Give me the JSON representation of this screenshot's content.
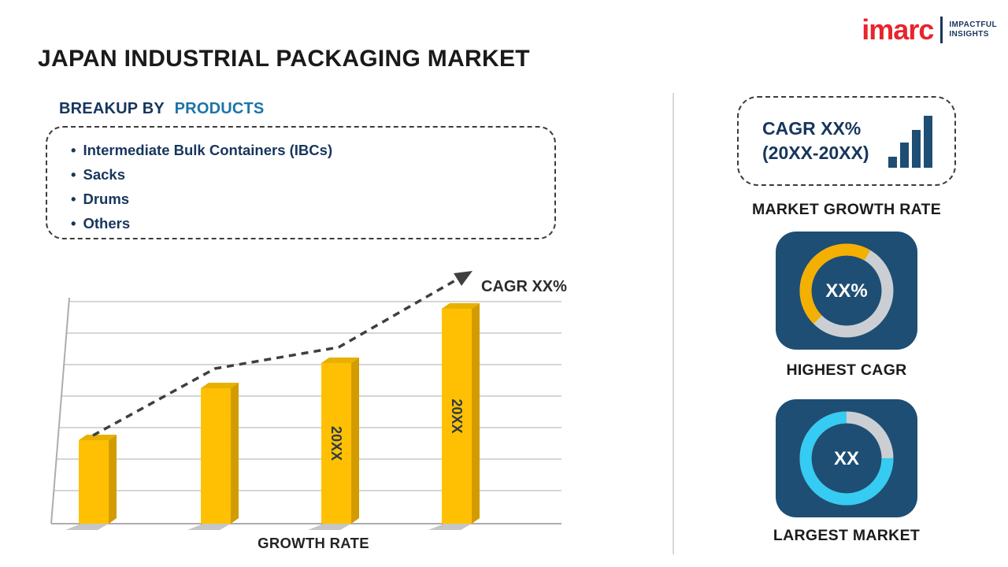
{
  "page": {
    "title": "JAPAN INDUSTRIAL PACKAGING MARKET"
  },
  "logo": {
    "brand": "imarc",
    "tagline_line1": "IMPACTFUL",
    "tagline_line2": "INSIGHTS"
  },
  "breakup": {
    "heading_prefix": "BREAKUP BY",
    "heading_highlight": "PRODUCTS",
    "items": [
      "Intermediate Bulk Containers (IBCs)",
      "Sacks",
      "Drums",
      "Others"
    ]
  },
  "chart_data": {
    "type": "bar",
    "categories": [
      "",
      "",
      "20XX",
      "20XX"
    ],
    "values": [
      37,
      60,
      71,
      95
    ],
    "ylim": [
      0,
      100
    ],
    "grid": true,
    "trend": "dashed-arrow-up",
    "annotation": "CAGR XX%",
    "xlabel": "GROWTH RATE",
    "ylabel": "",
    "title": "",
    "bar_color": "#FFC003",
    "bar_color_side": "#D29C00",
    "bar_color_top": "#E8B000",
    "label_color": "#2E3A48"
  },
  "right_panel": {
    "cagr_box": {
      "line1": "CAGR XX%",
      "line2": "(20XX-20XX)"
    },
    "market_growth_label": "MARKET GROWTH RATE",
    "highest_cagr": {
      "value": "XX%",
      "label": "HIGHEST CAGR",
      "ring": {
        "filled_pct": 46,
        "color": "#F4B000",
        "track_color": "#CBCFD3"
      }
    },
    "largest_market": {
      "value": "XX",
      "label": "LARGEST MARKET",
      "ring": {
        "filled_pct": 75,
        "color": "#35CBF2",
        "track_color": "#CBCFD3"
      }
    }
  },
  "colors": {
    "accent_navy": "#17365D",
    "heading_blue": "#1C74A8",
    "tile_navy": "#1E4E74",
    "brand_red": "#E8242C",
    "bar_gold": "#FFC003",
    "cyan": "#35CBF2"
  }
}
